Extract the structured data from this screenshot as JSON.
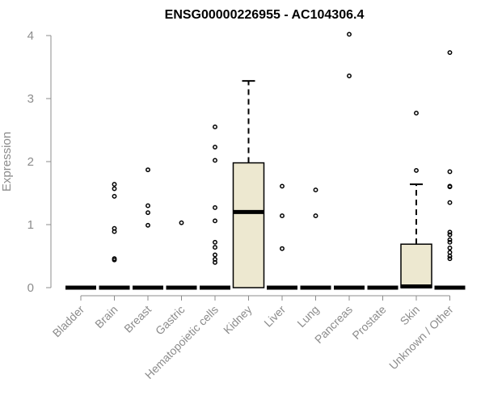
{
  "chart_data": {
    "type": "boxplot",
    "title": "ENSG00000226955 - AC104306.4",
    "xlabel": "",
    "ylabel": "Expression",
    "ylim": [
      0,
      4
    ],
    "yticks": [
      0,
      1,
      2,
      3,
      4
    ],
    "box_color": "#ede8d0",
    "categories": [
      "Bladder",
      "Brain",
      "Breast",
      "Gastric",
      "Hematopoietic cells",
      "Kidney",
      "Liver",
      "Lung",
      "Pancreas",
      "Prostate",
      "Skin",
      "Unknown / Other"
    ],
    "series": [
      {
        "category": "Bladder",
        "q1": 0,
        "median": 0,
        "q3": 0,
        "whisker_low": 0,
        "whisker_high": 0,
        "outliers": []
      },
      {
        "category": "Brain",
        "q1": 0,
        "median": 0,
        "q3": 0,
        "whisker_low": 0,
        "whisker_high": 0,
        "outliers": [
          1.64,
          1.57,
          1.45,
          0.94,
          0.89,
          0.46,
          0.44
        ]
      },
      {
        "category": "Breast",
        "q1": 0,
        "median": 0,
        "q3": 0,
        "whisker_low": 0,
        "whisker_high": 0,
        "outliers": [
          1.87,
          1.3,
          1.19,
          0.99
        ]
      },
      {
        "category": "Gastric",
        "q1": 0,
        "median": 0,
        "q3": 0,
        "whisker_low": 0,
        "whisker_high": 0,
        "outliers": [
          1.03
        ]
      },
      {
        "category": "Hematopoietic cells",
        "q1": 0,
        "median": 0,
        "q3": 0,
        "whisker_low": 0,
        "whisker_high": 0,
        "outliers": [
          2.55,
          2.23,
          2.02,
          1.27,
          1.06,
          0.72,
          0.64,
          0.52,
          0.45,
          0.4
        ]
      },
      {
        "category": "Kidney",
        "q1": 0,
        "median": 1.2,
        "q3": 1.98,
        "whisker_low": 0,
        "whisker_high": 3.28,
        "outliers": []
      },
      {
        "category": "Liver",
        "q1": 0,
        "median": 0,
        "q3": 0,
        "whisker_low": 0,
        "whisker_high": 0,
        "outliers": [
          1.61,
          1.14,
          0.62
        ]
      },
      {
        "category": "Lung",
        "q1": 0,
        "median": 0,
        "q3": 0,
        "whisker_low": 0,
        "whisker_high": 0,
        "outliers": [
          1.55,
          1.14
        ]
      },
      {
        "category": "Pancreas",
        "q1": 0,
        "median": 0,
        "q3": 0,
        "whisker_low": 0,
        "whisker_high": 0,
        "outliers": [
          4.02,
          3.36
        ]
      },
      {
        "category": "Prostate",
        "q1": 0,
        "median": 0,
        "q3": 0,
        "whisker_low": 0,
        "whisker_high": 0,
        "outliers": []
      },
      {
        "category": "Skin",
        "q1": 0,
        "median": 0.02,
        "q3": 0.69,
        "whisker_low": 0,
        "whisker_high": 1.64,
        "outliers": [
          2.77,
          1.86
        ]
      },
      {
        "category": "Unknown / Other",
        "q1": 0,
        "median": 0,
        "q3": 0,
        "whisker_low": 0,
        "whisker_high": 0,
        "outliers": [
          3.73,
          1.84,
          1.61,
          1.6,
          1.35,
          0.88,
          0.84,
          0.76,
          0.72,
          0.63,
          0.56,
          0.5,
          0.46
        ]
      }
    ]
  }
}
